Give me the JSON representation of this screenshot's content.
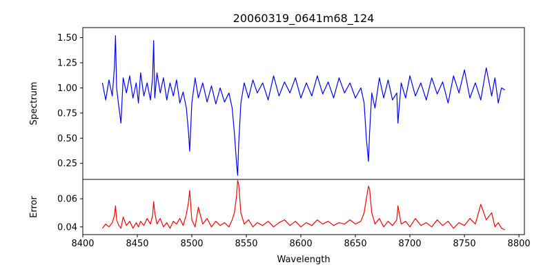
{
  "chart_data": [
    {
      "type": "line",
      "panel": "top",
      "title": "20060319_0641m68_124",
      "ylabel": "Spectrum",
      "xlabel": "",
      "xlim": [
        8400,
        8805
      ],
      "ylim": [
        0.09,
        1.6
      ],
      "yticks": [
        0.25,
        0.5,
        0.75,
        1.0,
        1.25,
        1.5
      ],
      "ytick_labels": [
        "0.25",
        "0.50",
        "0.75",
        "1.00",
        "1.25",
        "1.50"
      ],
      "series": [
        {
          "name": "Spectrum",
          "color": "#0000ff",
          "x": [
            8418,
            8421,
            8424,
            8427,
            8429,
            8430,
            8431,
            8433,
            8435,
            8437,
            8440,
            8443,
            8446,
            8449,
            8451,
            8453,
            8456,
            8459,
            8462,
            8464,
            8465,
            8466,
            8468,
            8471,
            8474,
            8477,
            8480,
            8483,
            8486,
            8489,
            8492,
            8495,
            8497,
            8498,
            8500,
            8503,
            8506,
            8510,
            8514,
            8518,
            8522,
            8526,
            8530,
            8534,
            8537,
            8539,
            8541,
            8542,
            8543,
            8545,
            8548,
            8552,
            8556,
            8560,
            8565,
            8570,
            8575,
            8580,
            8585,
            8590,
            8595,
            8600,
            8605,
            8610,
            8615,
            8620,
            8625,
            8630,
            8635,
            8640,
            8645,
            8650,
            8655,
            8658,
            8660,
            8662,
            8663,
            8665,
            8668,
            8672,
            8676,
            8680,
            8684,
            8688,
            8689,
            8692,
            8696,
            8700,
            8705,
            8710,
            8715,
            8720,
            8725,
            8730,
            8735,
            8740,
            8745,
            8750,
            8755,
            8760,
            8765,
            8770,
            8775,
            8778,
            8781,
            8784,
            8787
          ],
          "values": [
            1.05,
            0.88,
            1.08,
            0.92,
            1.2,
            1.52,
            1.0,
            0.82,
            0.65,
            1.1,
            0.95,
            1.12,
            0.9,
            1.05,
            0.85,
            1.15,
            0.92,
            1.05,
            0.88,
            1.1,
            1.47,
            0.9,
            1.15,
            0.95,
            1.1,
            0.88,
            1.05,
            0.92,
            1.08,
            0.85,
            0.96,
            0.8,
            0.55,
            0.37,
            0.85,
            1.1,
            0.9,
            1.05,
            0.86,
            1.02,
            0.84,
            1.0,
            0.86,
            0.95,
            0.8,
            0.55,
            0.25,
            0.13,
            0.45,
            0.85,
            1.05,
            0.9,
            1.08,
            0.95,
            1.05,
            0.88,
            1.12,
            0.92,
            1.06,
            0.95,
            1.1,
            0.9,
            1.05,
            0.92,
            1.12,
            0.94,
            1.06,
            0.9,
            1.1,
            0.95,
            1.05,
            0.9,
            1.0,
            0.85,
            0.5,
            0.27,
            0.55,
            0.95,
            0.8,
            1.1,
            0.9,
            1.08,
            0.88,
            0.95,
            0.65,
            1.05,
            0.9,
            1.12,
            0.92,
            1.05,
            0.88,
            1.1,
            0.94,
            1.06,
            0.85,
            1.12,
            0.95,
            1.18,
            0.9,
            1.05,
            0.88,
            1.2,
            0.92,
            1.1,
            0.85,
            1.0,
            0.98
          ]
        }
      ]
    },
    {
      "type": "line",
      "panel": "bottom",
      "title": "",
      "ylabel": "Error",
      "xlabel": "Wavelength",
      "xlim": [
        8400,
        8805
      ],
      "ylim": [
        0.0345,
        0.0738
      ],
      "yticks": [
        0.04,
        0.06
      ],
      "ytick_labels": [
        "0.04",
        "0.06"
      ],
      "xticks": [
        8400,
        8450,
        8500,
        8550,
        8600,
        8650,
        8700,
        8750,
        8800
      ],
      "xtick_labels": [
        "8400",
        "8450",
        "8500",
        "8550",
        "8600",
        "8650",
        "8700",
        "8750",
        "8800"
      ],
      "series": [
        {
          "name": "Error",
          "color": "#ff0000",
          "x": [
            8418,
            8421,
            8424,
            8427,
            8429,
            8430,
            8431,
            8433,
            8435,
            8437,
            8440,
            8443,
            8446,
            8449,
            8451,
            8453,
            8456,
            8459,
            8462,
            8464,
            8465,
            8466,
            8468,
            8471,
            8474,
            8477,
            8480,
            8483,
            8486,
            8489,
            8492,
            8495,
            8497,
            8498,
            8500,
            8503,
            8506,
            8510,
            8514,
            8518,
            8522,
            8526,
            8530,
            8534,
            8537,
            8539,
            8541,
            8542,
            8543,
            8545,
            8548,
            8552,
            8556,
            8560,
            8565,
            8570,
            8575,
            8580,
            8585,
            8590,
            8595,
            8600,
            8605,
            8610,
            8615,
            8620,
            8625,
            8630,
            8635,
            8640,
            8645,
            8650,
            8655,
            8658,
            8660,
            8662,
            8663,
            8665,
            8668,
            8672,
            8676,
            8680,
            8684,
            8688,
            8689,
            8692,
            8696,
            8700,
            8705,
            8710,
            8715,
            8720,
            8725,
            8730,
            8735,
            8740,
            8745,
            8750,
            8755,
            8760,
            8765,
            8770,
            8775,
            8778,
            8781,
            8784,
            8787
          ],
          "values": [
            0.039,
            0.042,
            0.04,
            0.043,
            0.048,
            0.055,
            0.045,
            0.041,
            0.039,
            0.047,
            0.041,
            0.044,
            0.039,
            0.043,
            0.04,
            0.044,
            0.041,
            0.046,
            0.042,
            0.048,
            0.058,
            0.05,
            0.042,
            0.046,
            0.04,
            0.043,
            0.039,
            0.044,
            0.042,
            0.046,
            0.041,
            0.049,
            0.058,
            0.066,
            0.045,
            0.04,
            0.054,
            0.042,
            0.046,
            0.04,
            0.044,
            0.041,
            0.043,
            0.04,
            0.045,
            0.05,
            0.062,
            0.073,
            0.07,
            0.05,
            0.042,
            0.045,
            0.04,
            0.043,
            0.041,
            0.044,
            0.04,
            0.043,
            0.045,
            0.041,
            0.044,
            0.04,
            0.043,
            0.041,
            0.045,
            0.042,
            0.044,
            0.041,
            0.043,
            0.042,
            0.045,
            0.042,
            0.044,
            0.05,
            0.06,
            0.069,
            0.067,
            0.05,
            0.042,
            0.046,
            0.04,
            0.044,
            0.041,
            0.045,
            0.055,
            0.042,
            0.044,
            0.04,
            0.046,
            0.041,
            0.043,
            0.04,
            0.045,
            0.041,
            0.044,
            0.039,
            0.043,
            0.041,
            0.046,
            0.042,
            0.056,
            0.045,
            0.05,
            0.04,
            0.043,
            0.039,
            0.038
          ]
        }
      ]
    }
  ]
}
